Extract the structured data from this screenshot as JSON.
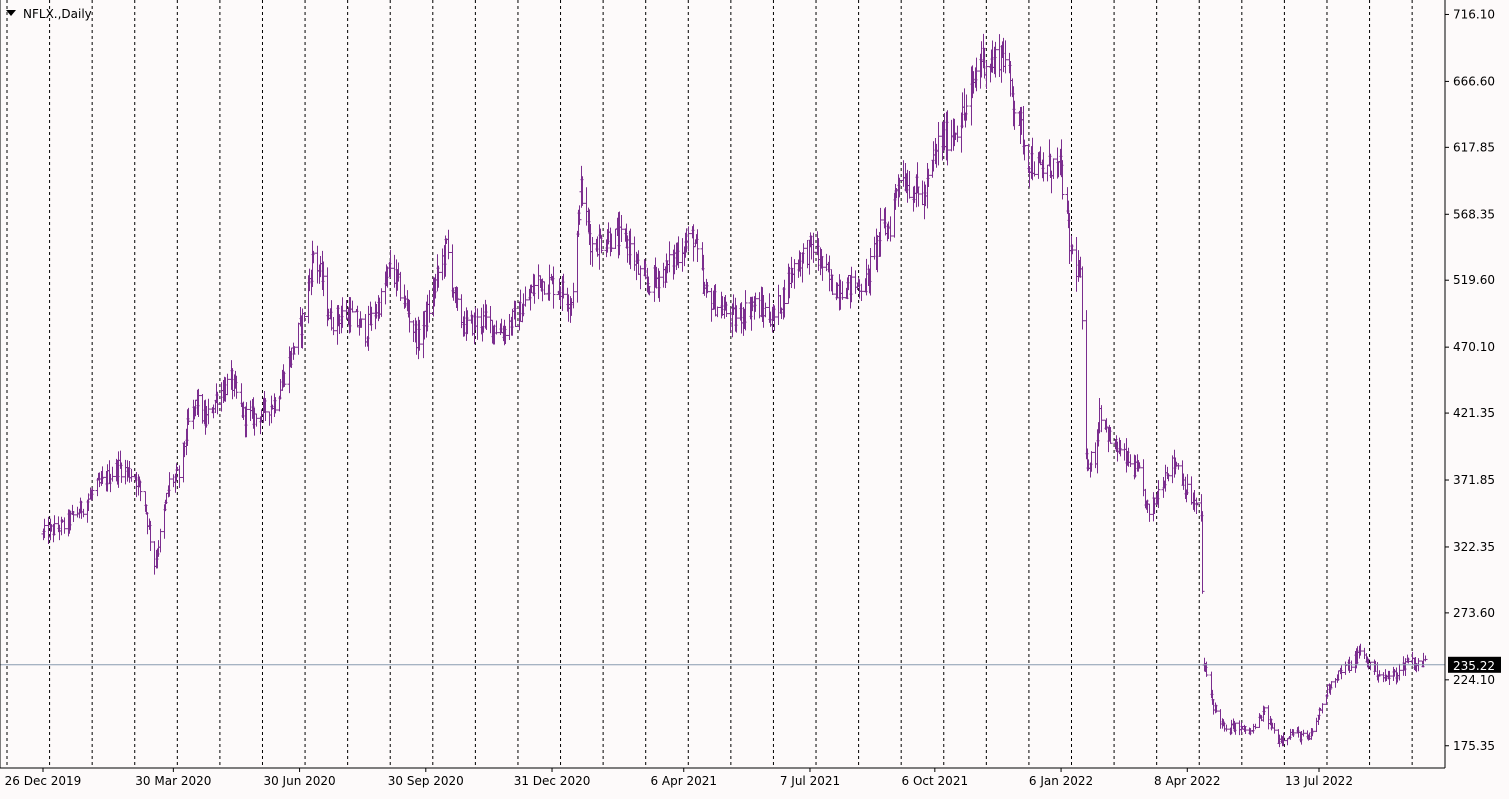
{
  "window": {
    "symbol_label": "NFLX.,Daily"
  },
  "colors": {
    "background": "#fdfafa",
    "bars": "#7b2d8e",
    "grid": "#000000",
    "price_line": "#8a9bb0",
    "price_label_bg": "#000000",
    "price_label_text": "#ffffff"
  },
  "chart_data": {
    "type": "bar",
    "title": "NFLX.,Daily",
    "timeframe": "Daily",
    "grid": true,
    "grid_style": "vertical dashed",
    "y_ticks": [
      "716.10",
      "666.60",
      "617.85",
      "568.35",
      "519.60",
      "470.10",
      "421.35",
      "371.85",
      "322.35",
      "273.60",
      "224.10",
      "175.35"
    ],
    "x_ticks": [
      "26 Dec 2019",
      "30 Mar 2020",
      "30 Jun 2020",
      "30 Sep 2020",
      "31 Dec 2020",
      "6 Apr 2021",
      "7 Jul 2021",
      "6 Oct 2021",
      "6 Jan 2022",
      "8 Apr 2022",
      "13 Jul 2022"
    ],
    "ylim": [
      158.9,
      726.8
    ],
    "current_price": "235.22",
    "series": [
      {
        "points": [
          [
            "2019-12-26",
            332
          ],
          [
            "2020-01-10",
            338
          ],
          [
            "2020-01-22",
            350
          ],
          [
            "2020-02-03",
            366
          ],
          [
            "2020-02-19",
            382
          ],
          [
            "2020-03-02",
            375
          ],
          [
            "2020-03-09",
            355
          ],
          [
            "2020-03-16",
            310
          ],
          [
            "2020-03-20",
            330
          ],
          [
            "2020-03-27",
            370
          ],
          [
            "2020-04-03",
            375
          ],
          [
            "2020-04-09",
            410
          ],
          [
            "2020-04-16",
            430
          ],
          [
            "2020-04-22",
            415
          ],
          [
            "2020-05-01",
            435
          ],
          [
            "2020-05-11",
            445
          ],
          [
            "2020-05-20",
            420
          ],
          [
            "2020-05-29",
            418
          ],
          [
            "2020-06-12",
            430
          ],
          [
            "2020-06-24",
            465
          ],
          [
            "2020-07-02",
            490
          ],
          [
            "2020-07-10",
            540
          ],
          [
            "2020-07-16",
            520
          ],
          [
            "2020-07-22",
            490
          ],
          [
            "2020-08-04",
            495
          ],
          [
            "2020-08-17",
            482
          ],
          [
            "2020-08-28",
            505
          ],
          [
            "2020-09-04",
            530
          ],
          [
            "2020-09-14",
            505
          ],
          [
            "2020-09-24",
            475
          ],
          [
            "2020-10-01",
            495
          ],
          [
            "2020-10-09",
            525
          ],
          [
            "2020-10-15",
            545
          ],
          [
            "2020-10-22",
            500
          ],
          [
            "2020-10-29",
            485
          ],
          [
            "2020-11-10",
            490
          ],
          [
            "2020-11-25",
            482
          ],
          [
            "2020-12-09",
            498
          ],
          [
            "2020-12-21",
            520
          ],
          [
            "2021-01-04",
            515
          ],
          [
            "2021-01-14",
            505
          ],
          [
            "2021-01-21",
            585
          ],
          [
            "2021-01-29",
            545
          ],
          [
            "2021-02-10",
            552
          ],
          [
            "2021-02-24",
            548
          ],
          [
            "2021-03-08",
            515
          ],
          [
            "2021-03-22",
            525
          ],
          [
            "2021-04-05",
            545
          ],
          [
            "2021-04-13",
            552
          ],
          [
            "2021-04-21",
            510
          ],
          [
            "2021-05-04",
            498
          ],
          [
            "2021-05-13",
            490
          ],
          [
            "2021-05-26",
            502
          ],
          [
            "2021-06-11",
            492
          ],
          [
            "2021-06-25",
            530
          ],
          [
            "2021-07-09",
            545
          ],
          [
            "2021-07-16",
            530
          ],
          [
            "2021-07-23",
            515
          ],
          [
            "2021-08-05",
            515
          ],
          [
            "2021-08-17",
            518
          ],
          [
            "2021-08-27",
            555
          ],
          [
            "2021-09-03",
            560
          ],
          [
            "2021-09-10",
            600
          ],
          [
            "2021-09-17",
            590
          ],
          [
            "2021-09-28",
            580
          ],
          [
            "2021-10-08",
            620
          ],
          [
            "2021-10-19",
            630
          ],
          [
            "2021-10-29",
            645
          ],
          [
            "2021-11-08",
            685
          ],
          [
            "2021-11-17",
            680
          ],
          [
            "2021-11-24",
            690
          ],
          [
            "2021-12-03",
            650
          ],
          [
            "2021-12-13",
            610
          ],
          [
            "2021-12-22",
            600
          ],
          [
            "2021-12-31",
            605
          ],
          [
            "2022-01-06",
            600
          ],
          [
            "2022-01-12",
            545
          ],
          [
            "2022-01-20",
            520
          ],
          [
            "2022-01-24",
            385
          ],
          [
            "2022-01-31",
            390
          ],
          [
            "2022-02-03",
            425
          ],
          [
            "2022-02-11",
            400
          ],
          [
            "2022-02-24",
            385
          ],
          [
            "2022-03-04",
            375
          ],
          [
            "2022-03-11",
            345
          ],
          [
            "2022-03-24",
            380
          ],
          [
            "2022-03-31",
            385
          ],
          [
            "2022-04-07",
            365
          ],
          [
            "2022-04-18",
            345
          ],
          [
            "2022-04-20",
            235
          ],
          [
            "2022-04-27",
            205
          ],
          [
            "2022-05-06",
            185
          ],
          [
            "2022-05-12",
            190
          ],
          [
            "2022-05-24",
            185
          ],
          [
            "2022-06-03",
            200
          ],
          [
            "2022-06-13",
            180
          ],
          [
            "2022-06-24",
            185
          ],
          [
            "2022-07-06",
            180
          ],
          [
            "2022-07-13",
            200
          ],
          [
            "2022-07-20",
            220
          ],
          [
            "2022-07-28",
            230
          ],
          [
            "2022-08-05",
            235
          ],
          [
            "2022-08-12",
            245
          ],
          [
            "2022-08-19",
            235
          ],
          [
            "2022-08-30",
            225
          ],
          [
            "2022-09-09",
            230
          ],
          [
            "2022-09-16",
            240
          ],
          [
            "2022-09-23",
            235
          ],
          [
            "2022-09-29",
            238
          ]
        ]
      }
    ]
  }
}
